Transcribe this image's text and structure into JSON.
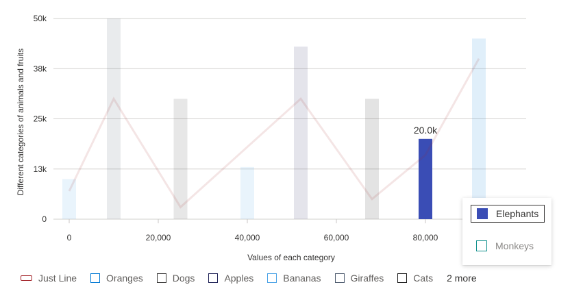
{
  "chart_data": {
    "type": "bar",
    "xlabel": "Values of each category",
    "ylabel": "Different categories of animals and fruits",
    "xlim": [
      0,
      90000
    ],
    "ylim": [
      0,
      50000
    ],
    "x_ticks": [
      "0",
      "20,000",
      "40,000",
      "60,000",
      "80,000"
    ],
    "y_ticks": [
      "0",
      "13k",
      "25k",
      "38k",
      "50k"
    ],
    "grid": true,
    "legend_position": "bottom",
    "bars": [
      {
        "series": "Bananas",
        "x": 0,
        "y": 10000
      },
      {
        "series": "Giraffes",
        "x": 10000,
        "y": 50000
      },
      {
        "series": "Dogs",
        "x": 25000,
        "y": 30000
      },
      {
        "series": "Bananas",
        "x": 40000,
        "y": 13000
      },
      {
        "series": "Apples",
        "x": 52000,
        "y": 43000
      },
      {
        "series": "Cats",
        "x": 68000,
        "y": 30000
      },
      {
        "series": "Elephants",
        "x": 80000,
        "y": 20000,
        "label": "20.0k",
        "highlighted": true
      },
      {
        "series": "Oranges",
        "x": 92000,
        "y": 45000
      }
    ],
    "line": {
      "name": "Just Line",
      "points": [
        [
          0,
          7000
        ],
        [
          10000,
          30000
        ],
        [
          25000,
          3000
        ],
        [
          52000,
          30000
        ],
        [
          68000,
          5000
        ],
        [
          80000,
          16000
        ],
        [
          92000,
          40000
        ]
      ]
    }
  },
  "colors": {
    "Just Line": "#a4262c",
    "Oranges": "#0078d4",
    "Dogs": "#3b3a39",
    "Apples": "#1f2257",
    "Bananas": "#4aa2e6",
    "Giraffes": "#4d5b6e",
    "Cats": "#1c1c1c",
    "Elephants": "#3a4db5",
    "Monkeys": "#0e8f8b"
  },
  "legend": {
    "items": [
      "Just Line",
      "Oranges",
      "Dogs",
      "Apples",
      "Bananas",
      "Giraffes",
      "Cats"
    ],
    "more_label": "2 more",
    "overflow": [
      "Elephants",
      "Monkeys"
    ],
    "selected": "Elephants"
  }
}
